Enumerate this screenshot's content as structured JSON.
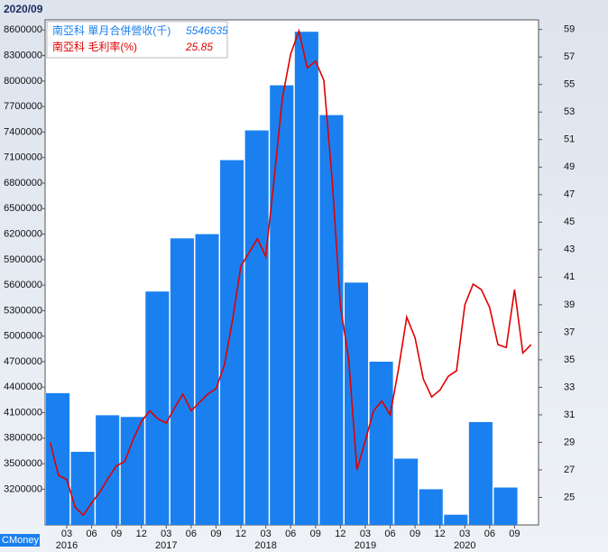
{
  "chart_data": {
    "type": "bar_line",
    "title": "2020/09",
    "watermark": "CMoney",
    "categories": [
      null,
      null,
      "03",
      null,
      null,
      "06",
      null,
      null,
      "09",
      null,
      null,
      "12",
      null,
      null,
      "03",
      null,
      null,
      "06",
      null,
      null,
      "09",
      null,
      null,
      "12",
      null,
      null,
      "03",
      null,
      null,
      "06",
      null,
      null,
      "09",
      null,
      null,
      "12",
      null,
      null,
      "03",
      null,
      null,
      "06",
      null,
      null,
      "09",
      null,
      null,
      "12",
      null,
      null,
      "03",
      null,
      null,
      "06",
      null,
      null,
      "09",
      null,
      null
    ],
    "year_labels": [
      "2016",
      "2017",
      "2018",
      "2019",
      "2020"
    ],
    "series": [
      {
        "name": "南亞科 單月合併營收(千)",
        "legend_value": "5546635",
        "color": "#1a80f0",
        "type": "bar",
        "values": [
          4330000,
          4330000,
          4330000,
          3640000,
          3640000,
          3640000,
          4070000,
          4070000,
          4070000,
          4050000,
          4050000,
          4050000,
          5525000,
          5525000,
          5525000,
          6150000,
          6150000,
          6150000,
          6200000,
          6200000,
          6200000,
          7070000,
          7070000,
          7070000,
          7420000,
          7420000,
          7420000,
          7950000,
          7950000,
          7950000,
          8580000,
          8580000,
          8580000,
          7600000,
          7600000,
          7600000,
          5630000,
          5630000,
          5630000,
          4700000,
          4700000,
          4700000,
          3560000,
          3560000,
          3560000,
          3200000,
          3200000,
          3200000,
          2900000,
          2900000,
          2900000,
          3990000,
          3990000,
          3990000,
          3220000,
          3220000,
          3220000,
          null,
          null
        ]
      },
      {
        "name": "南亞科 毛利率(%)",
        "legend_value": "25.85",
        "color": "#e00000",
        "type": "line",
        "axis": "y2",
        "values": [
          29.0,
          26.6,
          26.3,
          24.3,
          23.7,
          24.6,
          25.4,
          26.4,
          27.3,
          27.6,
          29.2,
          30.5,
          31.3,
          30.7,
          30.4,
          31.5,
          32.5,
          31.3,
          31.9,
          32.5,
          32.9,
          34.6,
          37.9,
          41.8,
          42.8,
          43.8,
          42.5,
          48.1,
          54.0,
          57.2,
          58.9,
          56.2,
          56.7,
          55.3,
          48.1,
          38.9,
          35.0,
          27.0,
          29.1,
          31.3,
          32.0,
          31.0,
          34.3,
          38.1,
          36.6,
          33.6,
          32.3,
          32.8,
          33.8,
          34.2,
          39.0,
          40.5,
          40.1,
          38.8,
          36.1,
          35.9,
          40.1,
          35.5,
          36.1
        ]
      }
    ],
    "ylim": [
      2780000,
      8720000
    ],
    "yticks": [
      3200000,
      3500000,
      3800000,
      4100000,
      4400000,
      4700000,
      5000000,
      5300000,
      5600000,
      5900000,
      6200000,
      6500000,
      6800000,
      7100000,
      7400000,
      7700000,
      8000000,
      8300000,
      8600000
    ],
    "y2lim": [
      23,
      59.7
    ],
    "y2ticks": [
      25,
      27,
      29,
      31,
      33,
      35,
      37,
      39,
      41,
      43,
      45,
      47,
      49,
      51,
      53,
      55,
      57,
      59
    ]
  }
}
